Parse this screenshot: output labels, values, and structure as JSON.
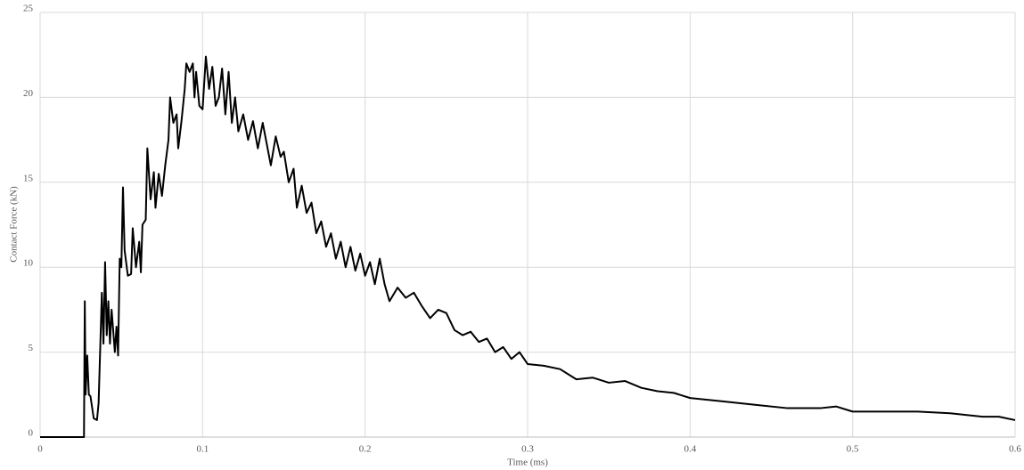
{
  "chart_data": {
    "type": "line",
    "x_label": "Time (ms)",
    "y_label": "Contact Force (kN)",
    "x": [
      0,
      0.027,
      0.0275,
      0.028,
      0.029,
      0.03,
      0.031,
      0.033,
      0.035,
      0.036,
      0.038,
      0.039,
      0.04,
      0.041,
      0.042,
      0.043,
      0.044,
      0.046,
      0.047,
      0.048,
      0.049,
      0.05,
      0.051,
      0.052,
      0.054,
      0.056,
      0.057,
      0.059,
      0.061,
      0.062,
      0.063,
      0.065,
      0.066,
      0.068,
      0.07,
      0.071,
      0.073,
      0.075,
      0.077,
      0.079,
      0.08,
      0.082,
      0.084,
      0.085,
      0.087,
      0.089,
      0.09,
      0.092,
      0.094,
      0.095,
      0.096,
      0.098,
      0.1,
      0.102,
      0.104,
      0.106,
      0.108,
      0.11,
      0.112,
      0.114,
      0.116,
      0.118,
      0.12,
      0.122,
      0.125,
      0.128,
      0.131,
      0.134,
      0.137,
      0.14,
      0.142,
      0.145,
      0.148,
      0.15,
      0.153,
      0.156,
      0.158,
      0.161,
      0.164,
      0.167,
      0.17,
      0.173,
      0.176,
      0.179,
      0.182,
      0.185,
      0.188,
      0.191,
      0.194,
      0.197,
      0.2,
      0.203,
      0.206,
      0.209,
      0.212,
      0.215,
      0.22,
      0.225,
      0.23,
      0.235,
      0.24,
      0.245,
      0.25,
      0.255,
      0.26,
      0.265,
      0.27,
      0.275,
      0.28,
      0.285,
      0.29,
      0.295,
      0.3,
      0.31,
      0.32,
      0.33,
      0.34,
      0.35,
      0.36,
      0.37,
      0.38,
      0.39,
      0.4,
      0.42,
      0.44,
      0.46,
      0.48,
      0.49,
      0.5,
      0.52,
      0.54,
      0.56,
      0.58,
      0.59,
      0.6
    ],
    "series": [
      {
        "color": "#000000",
        "values": [
          0,
          0,
          8.0,
          2.5,
          4.8,
          2.5,
          2.4,
          1.1,
          1.0,
          2.0,
          8.5,
          5.5,
          10.3,
          6.0,
          8.0,
          5.5,
          7.5,
          5.0,
          6.5,
          4.8,
          10.5,
          10.0,
          14.7,
          11.0,
          9.5,
          9.6,
          12.3,
          10.0,
          11.5,
          9.7,
          12.5,
          12.8,
          17.0,
          14.0,
          15.6,
          13.5,
          15.5,
          14.2,
          16.0,
          17.5,
          20.0,
          18.5,
          19.0,
          17.0,
          18.6,
          20.5,
          22.0,
          21.5,
          22.0,
          20.0,
          21.5,
          19.5,
          19.3,
          22.4,
          20.5,
          21.8,
          19.5,
          20.0,
          21.7,
          19.0,
          21.5,
          18.5,
          20.0,
          18.0,
          19.0,
          17.5,
          18.6,
          17.0,
          18.5,
          17.0,
          16.0,
          17.7,
          16.5,
          16.8,
          15.0,
          15.8,
          13.5,
          14.8,
          13.2,
          13.8,
          12.0,
          12.7,
          11.2,
          12.0,
          10.5,
          11.5,
          10.0,
          11.2,
          9.8,
          10.8,
          9.5,
          10.3,
          9.0,
          10.5,
          9.0,
          8.0,
          8.8,
          8.2,
          8.5,
          7.7,
          7.0,
          7.5,
          7.3,
          6.3,
          6.0,
          6.2,
          5.6,
          5.8,
          5.0,
          5.3,
          4.6,
          5.0,
          4.3,
          4.2,
          4.0,
          3.4,
          3.5,
          3.2,
          3.3,
          2.9,
          2.7,
          2.6,
          2.3,
          2.1,
          1.9,
          1.7,
          1.7,
          1.8,
          1.5,
          1.5,
          1.5,
          1.4,
          1.2,
          1.2,
          1.0
        ]
      }
    ],
    "xlim": [
      0,
      0.6
    ],
    "xticks": [
      0,
      0.1,
      0.2,
      0.3,
      0.4,
      0.5,
      0.6
    ],
    "ylim": [
      0,
      25
    ],
    "yticks": [
      0,
      5,
      10,
      15,
      20,
      25
    ],
    "grid": true
  }
}
